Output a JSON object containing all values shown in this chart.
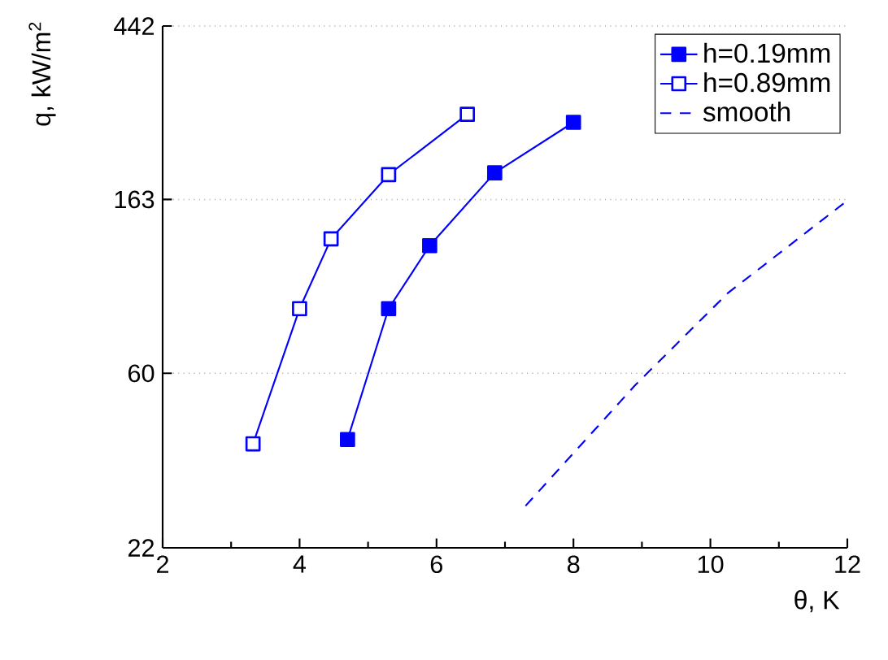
{
  "chart_data": {
    "type": "line",
    "xlabel": "θ, K",
    "ylabel": "q, kW/m$^{2}$",
    "log": "y",
    "grid": "y",
    "legend": "top right",
    "xlim": [
      2,
      12
    ],
    "xticks": [
      2,
      4,
      6,
      8,
      10,
      12
    ],
    "ylim": [
      22,
      442
    ],
    "yticks": [
      22,
      60,
      163,
      442
    ],
    "series": [
      {
        "name": "h=0.19mm",
        "color": "#0000ff",
        "marker": "square",
        "line_style": "solid",
        "x": [
          4.7,
          5.3,
          5.9,
          6.85,
          8.0
        ],
        "values": [
          41,
          87,
          125,
          190,
          254
        ]
      },
      {
        "name": "h=0.89mm",
        "color": "#0000ff",
        "marker": "square",
        "line_style": "solid",
        "x": [
          3.32,
          4.0,
          4.46,
          5.3,
          6.45
        ],
        "values": [
          40,
          87,
          130,
          188,
          266
        ]
      },
      {
        "name": "smooth",
        "color": "#0000ff",
        "marker": "none",
        "line_style": "dashed",
        "x": [
          7.3,
          8.9,
          10.25,
          12.0
        ],
        "values": [
          28,
          56,
          95,
          162
        ]
      }
    ]
  }
}
